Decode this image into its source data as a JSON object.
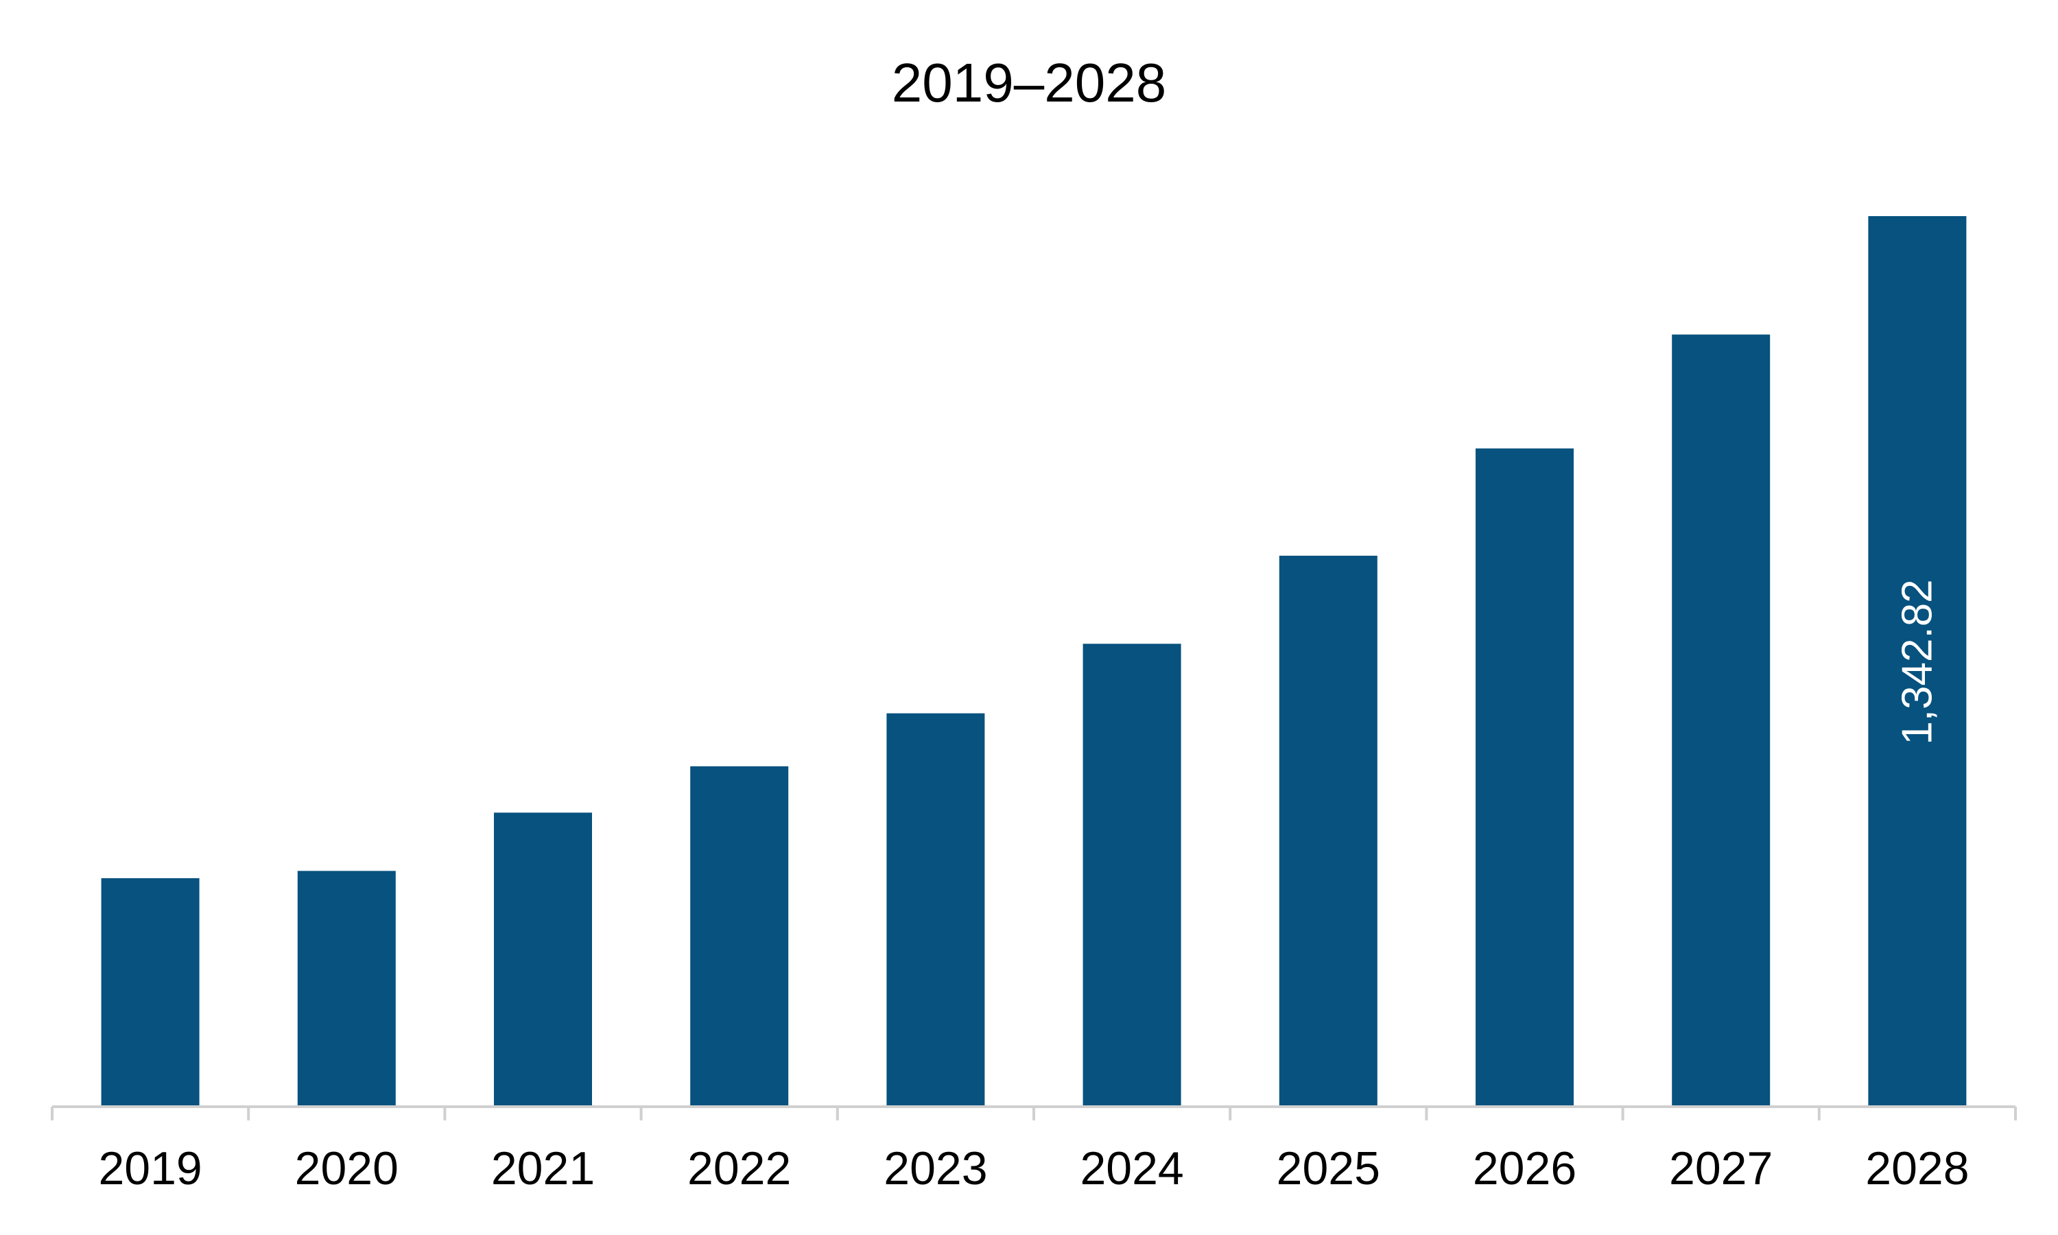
{
  "chart_data": {
    "type": "bar",
    "title": "2019–2028",
    "xlabel": "",
    "ylabel": "",
    "categories": [
      "2019",
      "2020",
      "2021",
      "2022",
      "2023",
      "2024",
      "2025",
      "2026",
      "2027",
      "2028"
    ],
    "values": [
      343,
      354,
      442,
      512,
      592,
      697,
      830,
      992,
      1164,
      1342.82
    ],
    "data_labels": [
      "",
      "",
      "",
      "",
      "",
      "",
      "",
      "",
      "",
      "1,342.82"
    ],
    "ylim": [
      0,
      1342.82
    ],
    "grid": false,
    "legend": "none",
    "colors": {
      "bar": "#07527E",
      "axis": "#D0D0D0",
      "text": "#000000",
      "data_label": "#FFFFFF",
      "background": "#FFFFFF"
    }
  }
}
